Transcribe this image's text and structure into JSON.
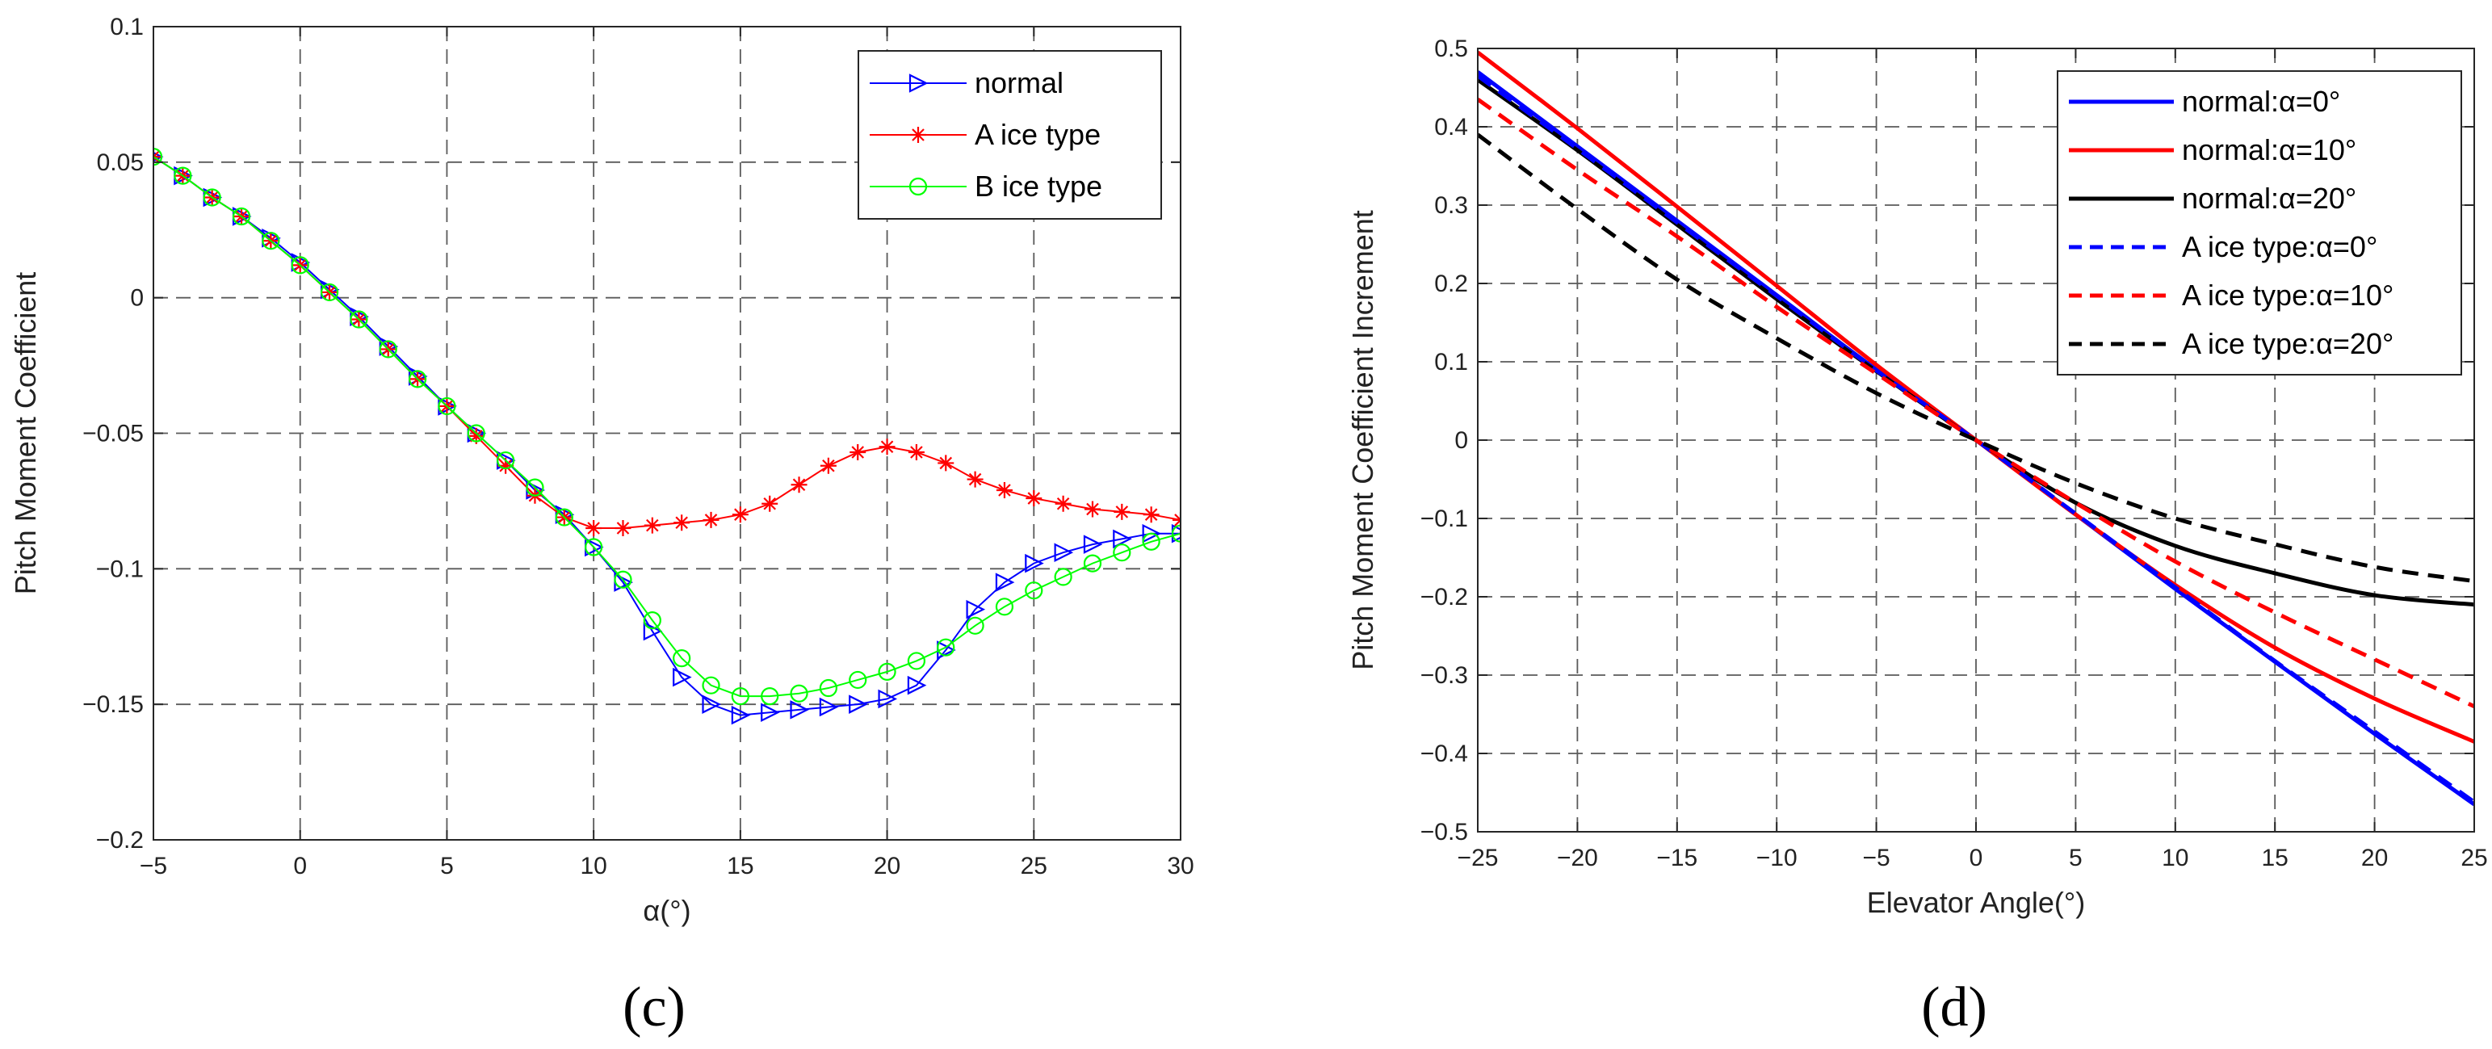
{
  "chart_data": [
    {
      "type": "line",
      "panel": "(c)",
      "title": "",
      "xlabel": "α(°)",
      "ylabel": "Pitch Moment Coefficient",
      "xlim": [
        -5,
        30
      ],
      "ylim": [
        -0.2,
        0.1
      ],
      "xticks": [
        -5,
        0,
        5,
        10,
        15,
        20,
        25,
        30
      ],
      "yticks": [
        -0.2,
        -0.15,
        -0.1,
        -0.05,
        0,
        0.05,
        0.1
      ],
      "xtick_labels": [
        "−5",
        "0",
        "5",
        "10",
        "15",
        "20",
        "25",
        "30"
      ],
      "ytick_labels": [
        "−0.2",
        "−0.15",
        "−0.1",
        "−0.05",
        "0",
        "0.05",
        "0.1"
      ],
      "grid": true,
      "legend_position": "top-right",
      "x": [
        -5,
        -4,
        -3,
        -2,
        -1,
        0,
        1,
        2,
        3,
        4,
        5,
        6,
        7,
        8,
        9,
        10,
        11,
        12,
        13,
        14,
        15,
        16,
        17,
        18,
        19,
        20,
        21,
        22,
        23,
        24,
        25,
        26,
        27,
        28,
        29,
        30
      ],
      "series": [
        {
          "name": "normal",
          "color": "#0000ff",
          "marker": "triangle-right",
          "values": [
            0.052,
            0.045,
            0.037,
            0.03,
            0.022,
            0.013,
            0.003,
            -0.007,
            -0.018,
            -0.029,
            -0.04,
            -0.05,
            -0.06,
            -0.071,
            -0.08,
            -0.092,
            -0.105,
            -0.123,
            -0.14,
            -0.15,
            -0.154,
            -0.153,
            -0.152,
            -0.151,
            -0.15,
            -0.148,
            -0.143,
            -0.13,
            -0.115,
            -0.105,
            -0.098,
            -0.094,
            -0.091,
            -0.089,
            -0.087,
            -0.087
          ]
        },
        {
          "name": "A ice type",
          "color": "#ff0000",
          "marker": "star",
          "values": [
            0.052,
            0.045,
            0.037,
            0.03,
            0.021,
            0.012,
            0.002,
            -0.008,
            -0.019,
            -0.03,
            -0.04,
            -0.051,
            -0.062,
            -0.073,
            -0.081,
            -0.085,
            -0.085,
            -0.084,
            -0.083,
            -0.082,
            -0.08,
            -0.076,
            -0.069,
            -0.062,
            -0.057,
            -0.055,
            -0.057,
            -0.061,
            -0.067,
            -0.071,
            -0.074,
            -0.076,
            -0.078,
            -0.079,
            -0.08,
            -0.082
          ]
        },
        {
          "name": "B ice type",
          "color": "#00ff00",
          "marker": "circle",
          "values": [
            0.052,
            0.045,
            0.037,
            0.03,
            0.021,
            0.012,
            0.002,
            -0.008,
            -0.019,
            -0.03,
            -0.04,
            -0.05,
            -0.06,
            -0.07,
            -0.081,
            -0.092,
            -0.104,
            -0.119,
            -0.133,
            -0.143,
            -0.147,
            -0.147,
            -0.146,
            -0.144,
            -0.141,
            -0.138,
            -0.134,
            -0.129,
            -0.121,
            -0.114,
            -0.108,
            -0.103,
            -0.098,
            -0.094,
            -0.09,
            -0.087
          ]
        }
      ]
    },
    {
      "type": "line",
      "panel": "(d)",
      "title": "",
      "xlabel": "Elevator Angle(°)",
      "ylabel": "Pitch Moment Coefficient Increment",
      "xlim": [
        -25,
        25
      ],
      "ylim": [
        -0.5,
        0.5
      ],
      "xticks": [
        -25,
        -20,
        -15,
        -10,
        -5,
        0,
        5,
        10,
        15,
        20,
        25
      ],
      "yticks": [
        -0.5,
        -0.4,
        -0.3,
        -0.2,
        -0.1,
        0,
        0.1,
        0.2,
        0.3,
        0.4,
        0.5
      ],
      "xtick_labels": [
        "−25",
        "−20",
        "−15",
        "−10",
        "−5",
        "0",
        "5",
        "10",
        "15",
        "20",
        "25"
      ],
      "ytick_labels": [
        "−0.5",
        "−0.4",
        "−0.3",
        "−0.2",
        "−0.1",
        "0",
        "0.1",
        "0.2",
        "0.3",
        "0.4",
        "0.5"
      ],
      "grid": true,
      "legend_position": "top-right",
      "x": [
        -25,
        -20,
        -15,
        -10,
        -5,
        0,
        5,
        10,
        15,
        20,
        25
      ],
      "series": [
        {
          "name": "normal:α=0°",
          "color": "#0000ff",
          "dash": "solid",
          "values": [
            0.47,
            0.375,
            0.28,
            0.185,
            0.09,
            0.0,
            -0.095,
            -0.19,
            -0.283,
            -0.375,
            -0.465
          ]
        },
        {
          "name": "normal:α=10°",
          "color": "#ff0000",
          "dash": "solid",
          "values": [
            0.495,
            0.398,
            0.298,
            0.197,
            0.096,
            0.0,
            -0.095,
            -0.185,
            -0.265,
            -0.33,
            -0.385
          ]
        },
        {
          "name": "normal:α=20°",
          "color": "#000000",
          "dash": "solid",
          "values": [
            0.46,
            0.37,
            0.275,
            0.18,
            0.088,
            0.0,
            -0.08,
            -0.135,
            -0.17,
            -0.198,
            -0.21
          ]
        },
        {
          "name": "A ice type:α=0°",
          "color": "#0000ff",
          "dash": "dashed",
          "values": [
            0.465,
            0.372,
            0.278,
            0.184,
            0.089,
            0.0,
            -0.094,
            -0.188,
            -0.282,
            -0.372,
            -0.462
          ]
        },
        {
          "name": "A ice type:α=10°",
          "color": "#ff0000",
          "dash": "dashed",
          "values": [
            0.435,
            0.345,
            0.26,
            0.17,
            0.085,
            0.0,
            -0.08,
            -0.155,
            -0.22,
            -0.28,
            -0.34
          ]
        },
        {
          "name": "A ice type:α=20°",
          "color": "#000000",
          "dash": "dashed",
          "values": [
            0.39,
            0.295,
            0.205,
            0.13,
            0.06,
            0.0,
            -0.055,
            -0.1,
            -0.133,
            -0.162,
            -0.18
          ]
        }
      ]
    }
  ],
  "panel_labels": {
    "c": "(c)",
    "d": "(d)"
  }
}
